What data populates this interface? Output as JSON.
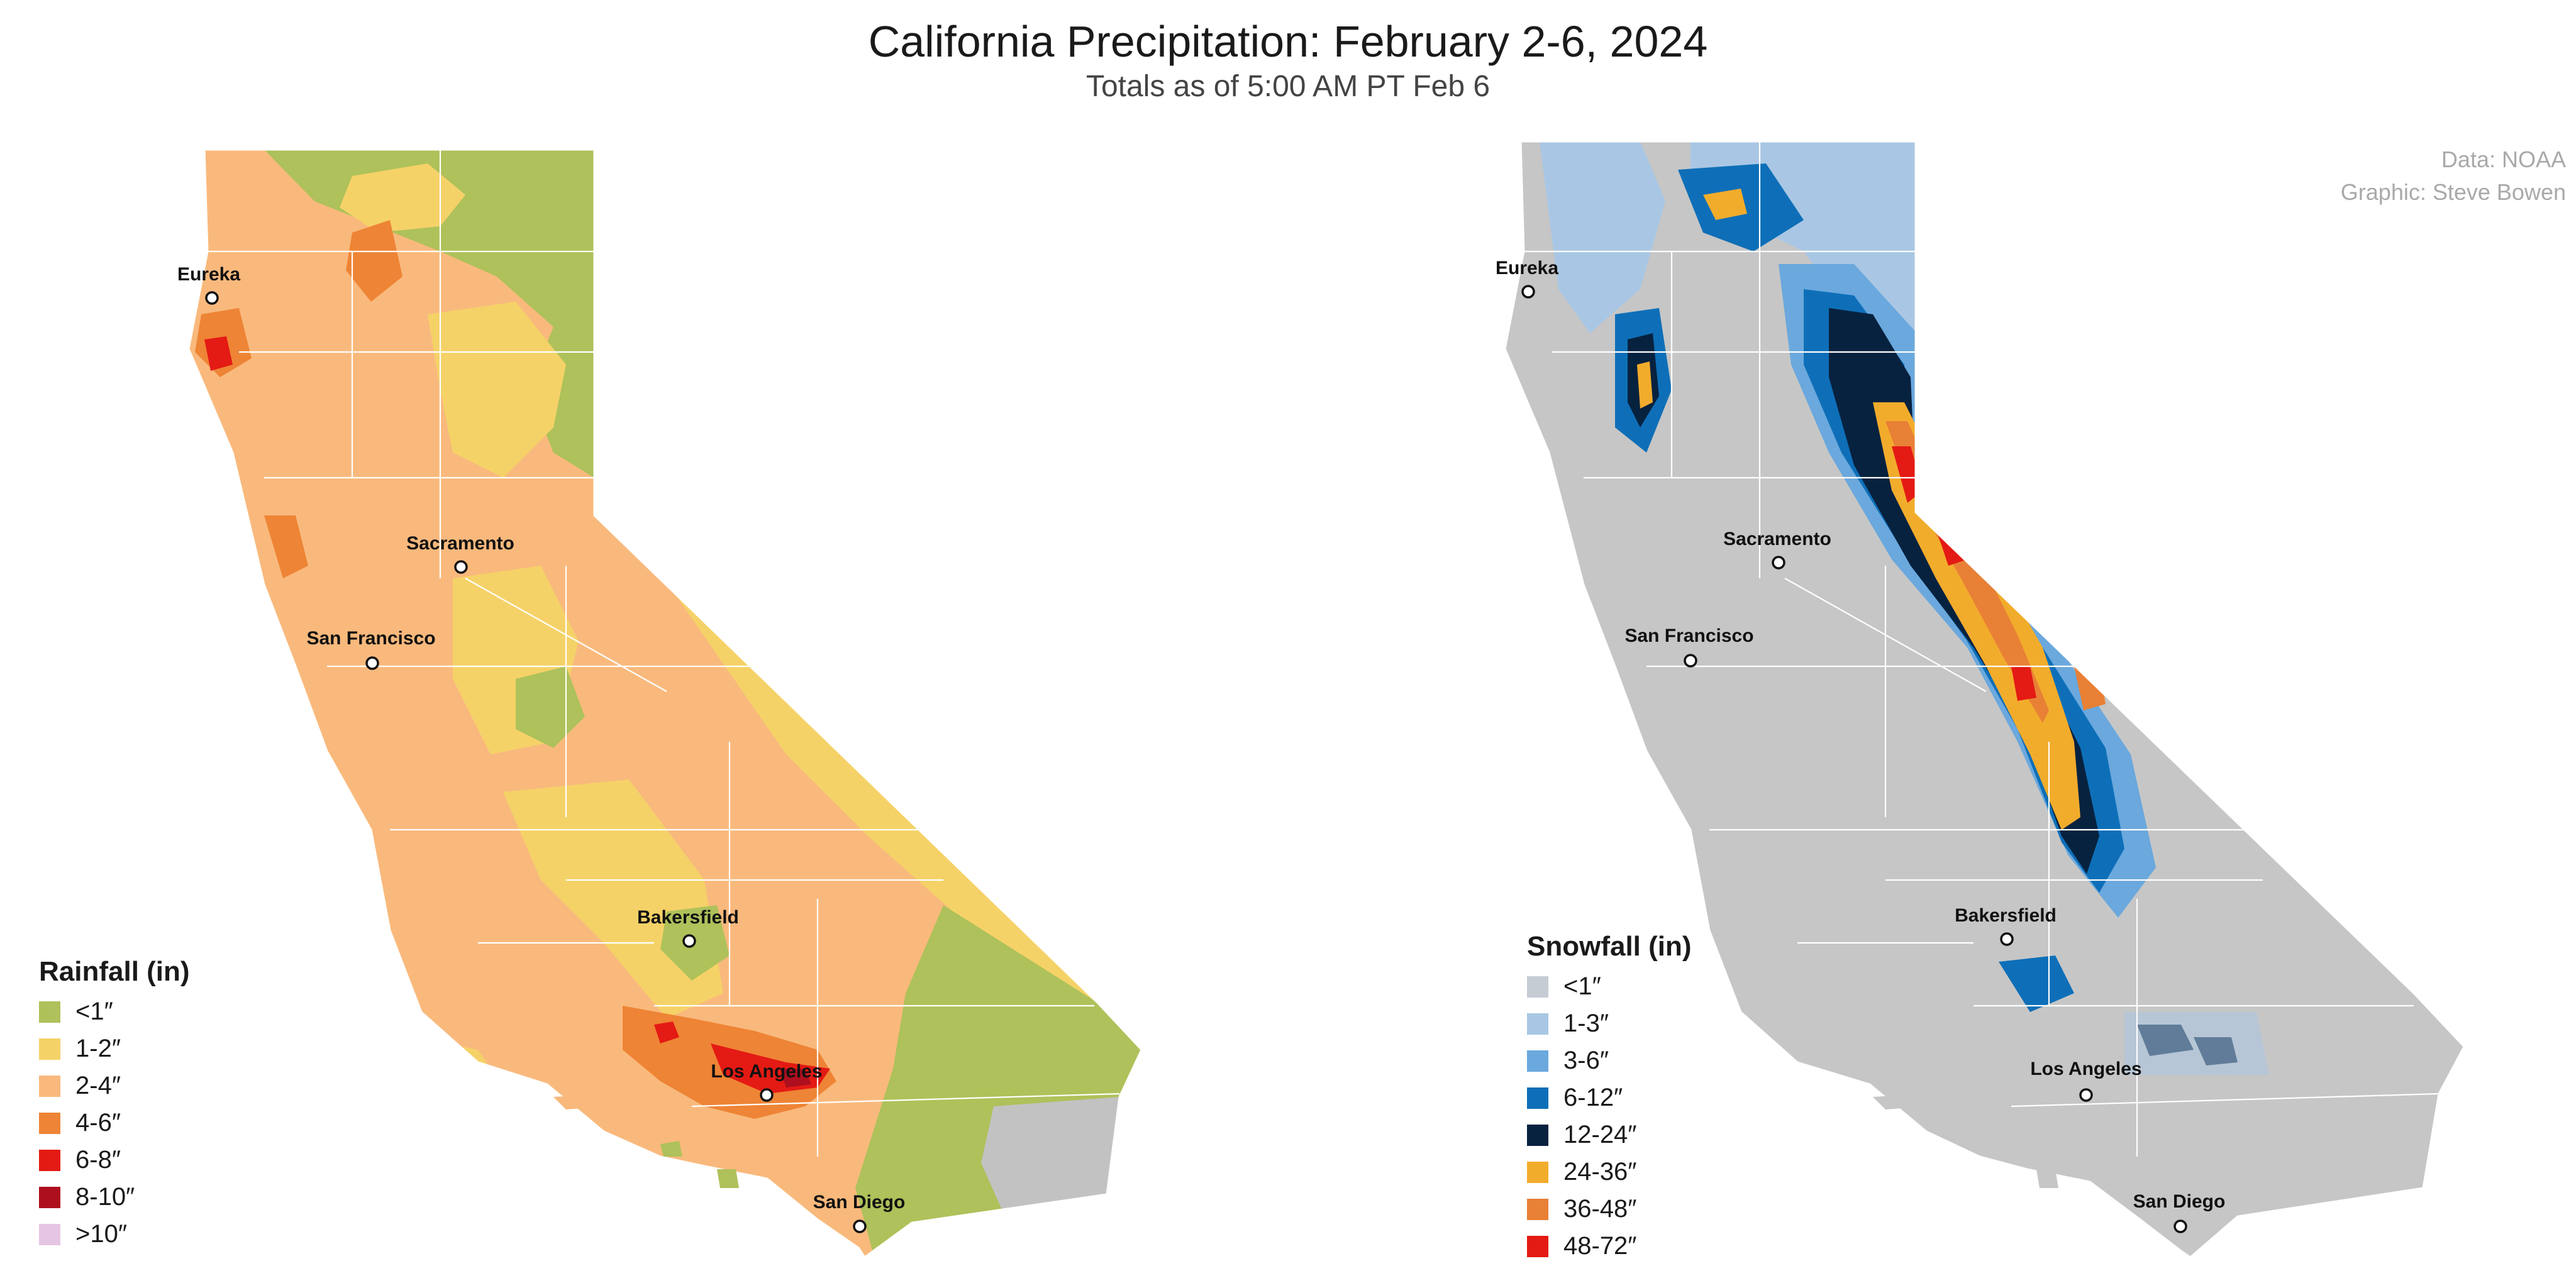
{
  "title": "California Precipitation: February 2-6, 2024",
  "subtitle": "Totals as of 5:00 AM PT Feb 6",
  "credits": {
    "data": "Data: NOAA",
    "graphic": "Graphic: Steve Bowen"
  },
  "rainfall_map": {
    "legend_title": "Rainfall (in)",
    "legend": [
      {
        "label": "<1″",
        "color": "#aec15a"
      },
      {
        "label": "1-2″",
        "color": "#f5d268"
      },
      {
        "label": "2-4″",
        "color": "#f9b97c"
      },
      {
        "label": "4-6″",
        "color": "#ee8435"
      },
      {
        "label": "6-8″",
        "color": "#e41a14"
      },
      {
        "label": "8-10″",
        "color": "#ad0f1e"
      },
      {
        "label": ">10″",
        "color": "#e6c5e4"
      }
    ],
    "cities": [
      "Eureka",
      "Sacramento",
      "San Francisco",
      "Bakersfield",
      "Los Angeles",
      "San Diego"
    ]
  },
  "snowfall_map": {
    "legend_title": "Snowfall (in)",
    "legend": [
      {
        "label": "<1″",
        "color": "#c6ccd4"
      },
      {
        "label": "1-3″",
        "color": "#a9c7e4"
      },
      {
        "label": "3-6″",
        "color": "#6aa8dd"
      },
      {
        "label": "6-12″",
        "color": "#0e6fb8"
      },
      {
        "label": "12-24″",
        "color": "#07223f"
      },
      {
        "label": "24-36″",
        "color": "#f2ac2c"
      },
      {
        "label": "36-48″",
        "color": "#e88035"
      },
      {
        "label": "48-72″",
        "color": "#e41a14"
      }
    ],
    "cities": [
      "Eureka",
      "Sacramento",
      "San Francisco",
      "Bakersfield",
      "Los Angeles",
      "San Diego"
    ]
  },
  "colors": {
    "no_data_gray": "#c2c2c2",
    "snow_base_gray": "#c6c6c6",
    "county_line": "#ffffff"
  }
}
